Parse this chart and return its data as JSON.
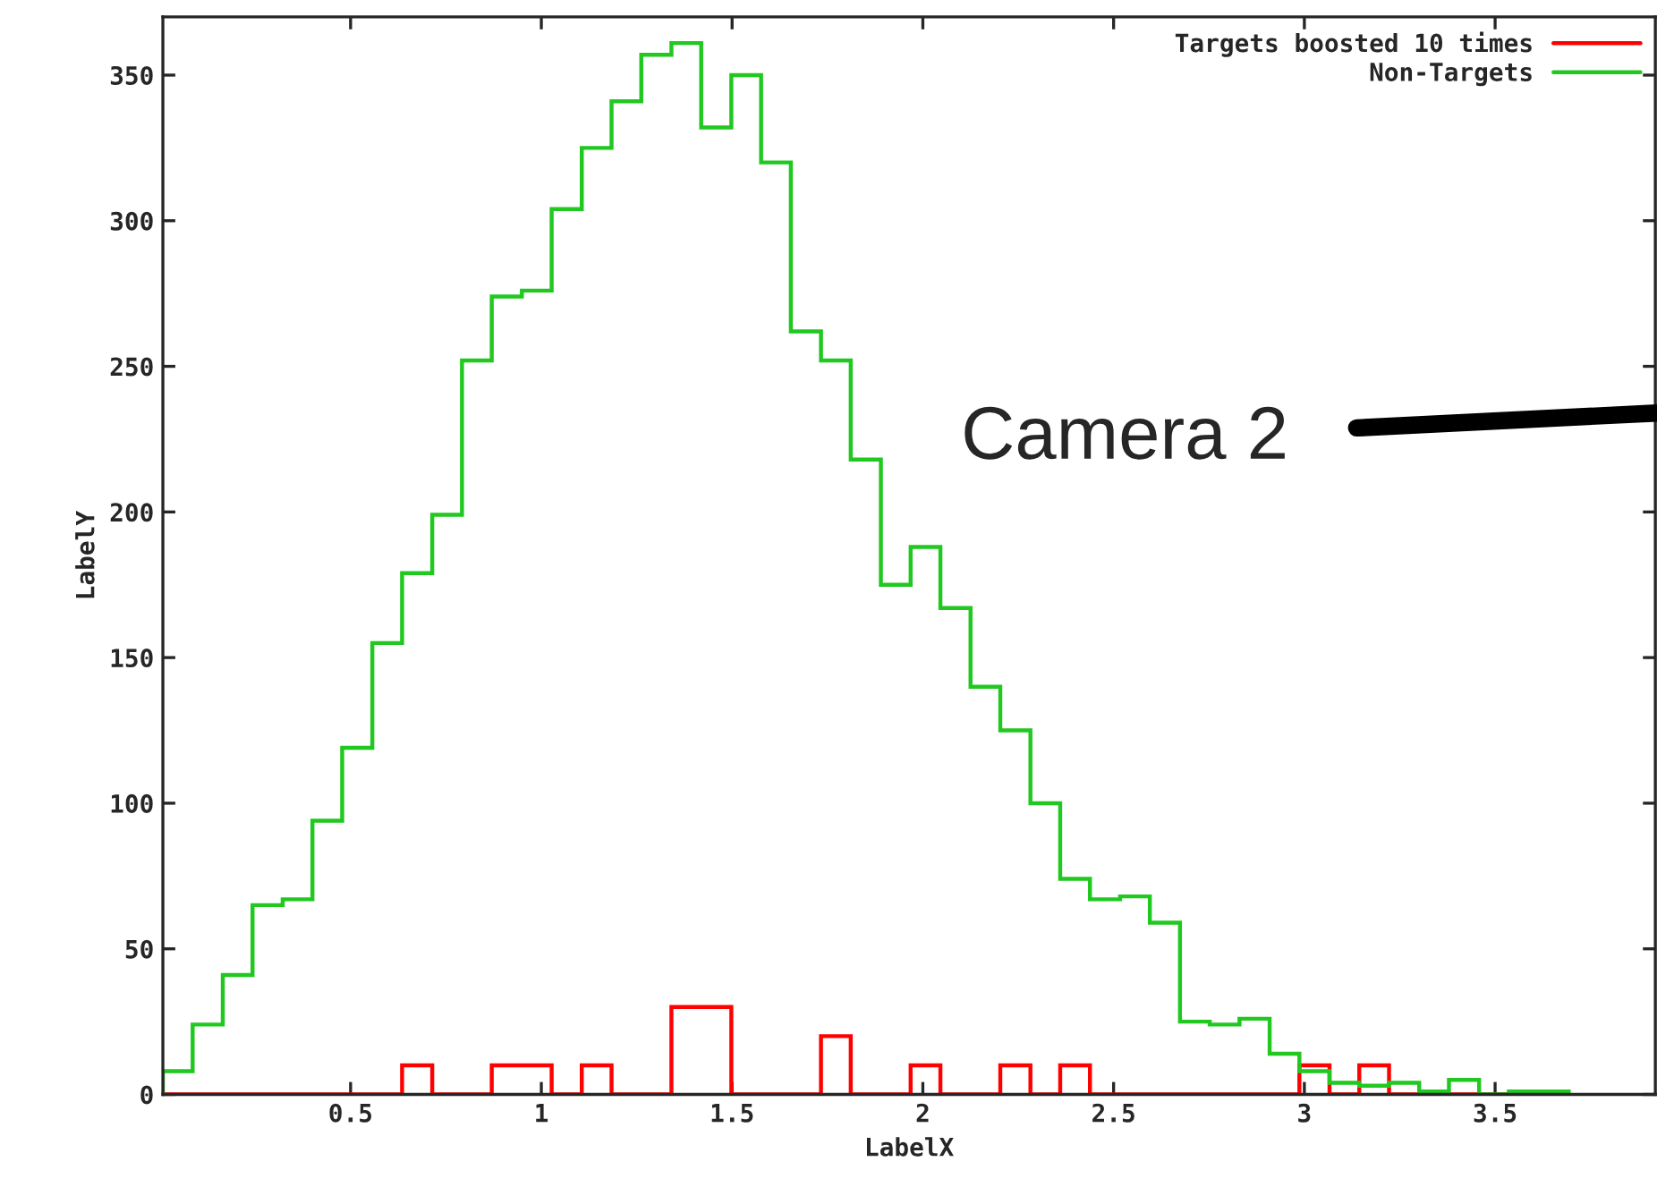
{
  "chart_data": {
    "type": "histogram",
    "xlabel": "LabelX",
    "ylabel": "LabelY",
    "bins": [
      0.008,
      0.086,
      0.165,
      0.243,
      0.322,
      0.4,
      0.478,
      0.557,
      0.635,
      0.714,
      0.792,
      0.87,
      0.949,
      1.027,
      1.106,
      1.184,
      1.262,
      1.341,
      1.419,
      1.498,
      1.576,
      1.654,
      1.733,
      1.811,
      1.89,
      1.968,
      2.046,
      2.125,
      2.203,
      2.282,
      2.36,
      2.438,
      2.517,
      2.595,
      2.674,
      2.752,
      2.83,
      2.909,
      2.987,
      3.066,
      3.144,
      3.222,
      3.301,
      3.379,
      3.458,
      3.536,
      3.614,
      3.693
    ],
    "series": [
      {
        "name": "Targets boosted 10 times",
        "color": "#ff0000",
        "values": [
          0,
          0,
          0,
          0,
          0,
          0,
          0,
          0,
          10,
          0,
          0,
          10,
          10,
          0,
          10,
          0,
          0,
          30,
          30,
          0,
          0,
          0,
          20,
          0,
          0,
          10,
          0,
          0,
          10,
          0,
          10,
          0,
          0,
          0,
          0,
          0,
          0,
          0,
          10,
          0,
          10,
          0,
          0,
          0,
          0,
          0,
          0
        ]
      },
      {
        "name": "Non-Targets",
        "color": "#20c820",
        "values": [
          8,
          24,
          41,
          65,
          67,
          94,
          119,
          155,
          179,
          199,
          252,
          274,
          276,
          304,
          325,
          341,
          357,
          361,
          332,
          350,
          320,
          262,
          252,
          218,
          175,
          188,
          167,
          140,
          125,
          100,
          74,
          67,
          68,
          59,
          25,
          24,
          26,
          14,
          8,
          4,
          3,
          4,
          1,
          5,
          0,
          1,
          1
        ]
      }
    ],
    "xlim": [
      0.008,
      3.92
    ],
    "ylim": [
      0,
      370
    ],
    "xticks": [
      0.5,
      1,
      1.5,
      2,
      2.5,
      3,
      3.5
    ],
    "yticks": [
      0,
      50,
      100,
      150,
      200,
      250,
      300,
      350
    ],
    "legend": "top right",
    "grid": false,
    "annotations": [
      "Camera 2"
    ]
  }
}
